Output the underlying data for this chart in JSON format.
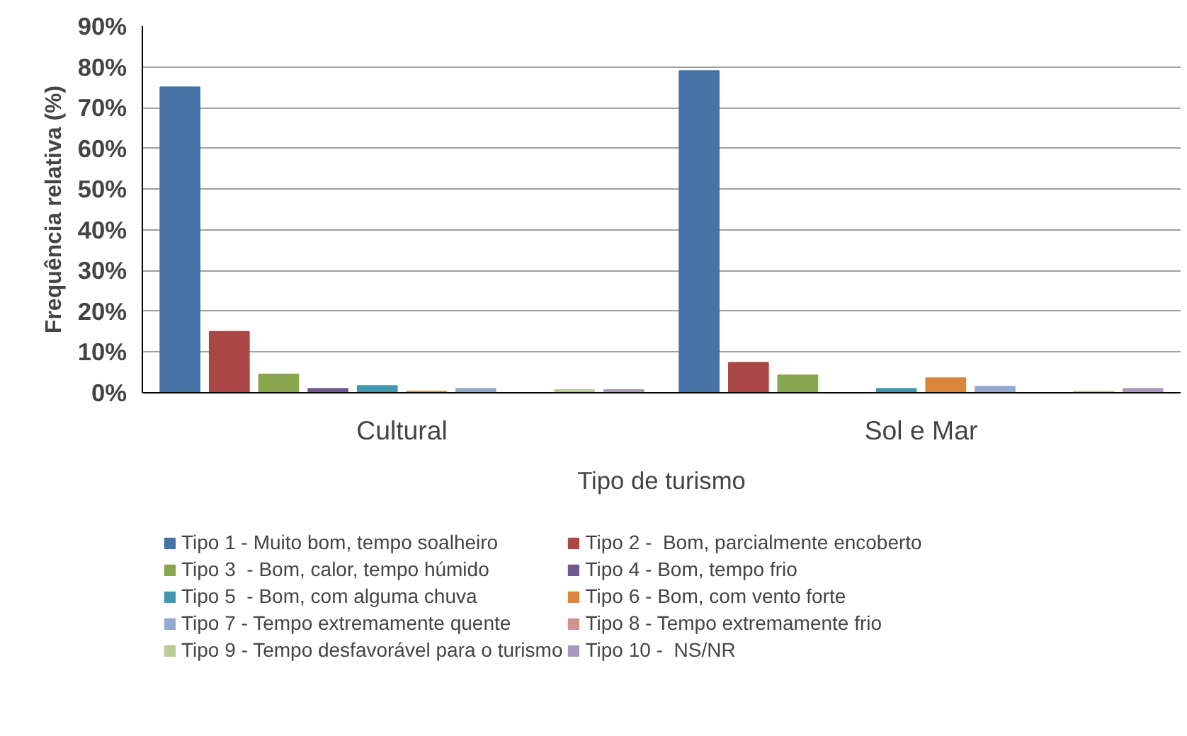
{
  "chart_data": {
    "type": "bar",
    "xlabel": "Tipo de turismo",
    "ylabel": "Frequência relativa (%)",
    "categories": [
      "Cultural",
      "Sol e Mar"
    ],
    "series": [
      {
        "name": "Tipo 1 - Muito bom, tempo soalheiro",
        "color": "#4572a7",
        "values": [
          75,
          79
        ]
      },
      {
        "name": "Tipo 2 -  Bom, parcialmente encoberto",
        "color": "#aa4643",
        "values": [
          15,
          7.4
        ]
      },
      {
        "name": "Tipo 3  - Bom, calor, tempo húmido",
        "color": "#89a54e",
        "values": [
          4.5,
          4.3
        ]
      },
      {
        "name": "Tipo 4 - Bom, tempo frio",
        "color": "#71588f",
        "values": [
          1,
          0
        ]
      },
      {
        "name": "Tipo 5  - Bom, com alguma chuva",
        "color": "#4198af",
        "values": [
          1.7,
          1
        ]
      },
      {
        "name": "Tipo 6 - Bom, com vento forte",
        "color": "#db843d",
        "values": [
          0.3,
          3.6
        ]
      },
      {
        "name": "Tipo 7 - Tempo extremamente quente",
        "color": "#93a9cf",
        "values": [
          1,
          1.5
        ]
      },
      {
        "name": "Tipo 8 - Tempo extremamente frio",
        "color": "#d19392",
        "values": [
          0,
          0
        ]
      },
      {
        "name": "Tipo 9 - Tempo desfavorável para o turismo",
        "color": "#b9cd96",
        "values": [
          0.7,
          0.3
        ]
      },
      {
        "name": "Tipo 10 -  NS/NR",
        "color": "#a99bbd",
        "values": [
          0.7,
          1
        ]
      }
    ],
    "ylim": [
      0,
      90
    ],
    "yticks": [
      {
        "value": 0,
        "label": "0%"
      },
      {
        "value": 10,
        "label": "10%"
      },
      {
        "value": 20,
        "label": "20%"
      },
      {
        "value": 30,
        "label": "30%"
      },
      {
        "value": 40,
        "label": "40%"
      },
      {
        "value": 50,
        "label": "50%"
      },
      {
        "value": 60,
        "label": "60%"
      },
      {
        "value": 70,
        "label": "70%"
      },
      {
        "value": 80,
        "label": "80%"
      },
      {
        "value": 90,
        "label": "90%"
      }
    ],
    "grid": "y",
    "legend": "bottom"
  }
}
